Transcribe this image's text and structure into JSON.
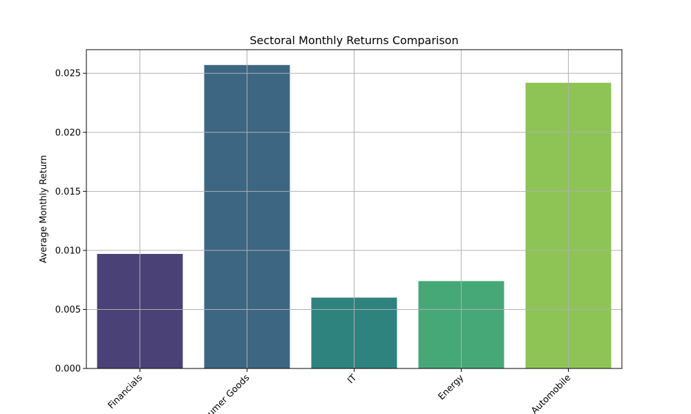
{
  "chart_data": {
    "type": "bar",
    "title": "Sectoral Monthly Returns Comparison",
    "xlabel": "",
    "ylabel": "Average Monthly Return",
    "categories": [
      "Financials",
      "Consumer Goods",
      "IT",
      "Energy",
      "Automobile"
    ],
    "values": [
      0.0097,
      0.0257,
      0.006,
      0.0074,
      0.0242
    ],
    "colors": [
      "#4a4177",
      "#3d6683",
      "#2e837f",
      "#46a877",
      "#8ec456"
    ],
    "ylim": [
      0,
      0.027
    ],
    "yticks": [
      "0.000",
      "0.005",
      "0.010",
      "0.015",
      "0.020",
      "0.025"
    ],
    "ytick_values": [
      0,
      0.005,
      0.01,
      0.015,
      0.02,
      0.025
    ],
    "xtick_rotation": 45,
    "grid": true
  }
}
